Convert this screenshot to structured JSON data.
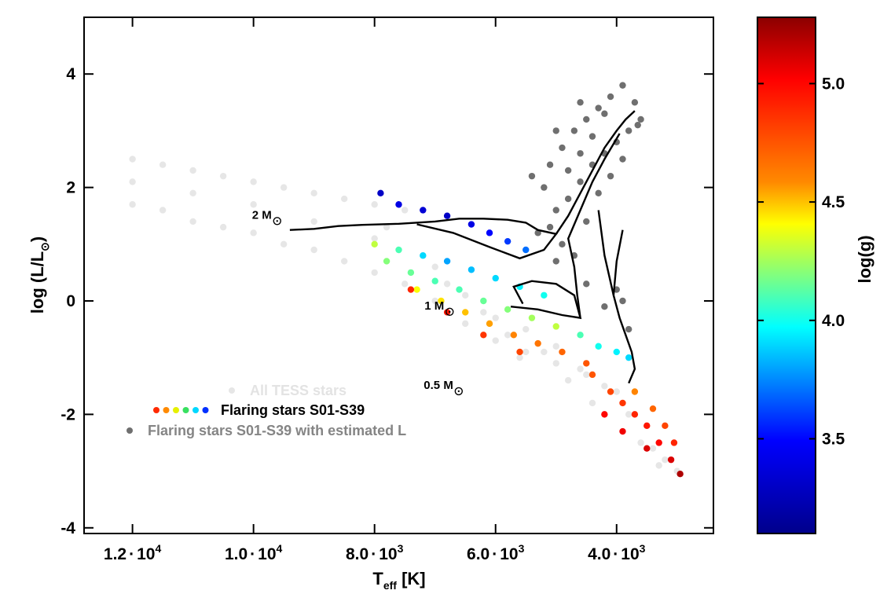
{
  "chart_data": {
    "type": "scatter",
    "xlabel": "T",
    "xlabel_sub": "eff",
    "xlabel_unit": " [K]",
    "ylabel": "log (L/L",
    "ylabel_sub": "⊙",
    "ylabel_end": ")",
    "x_axis_reversed": true,
    "xlim": [
      12800,
      2400
    ],
    "ylim": [
      -4.1,
      5.0
    ],
    "x_ticks": [
      {
        "value": 12000,
        "mant": "1.2",
        "exp": "4"
      },
      {
        "value": 10000,
        "mant": "1.0",
        "exp": "4"
      },
      {
        "value": 8000,
        "mant": "8.0",
        "exp": "3"
      },
      {
        "value": 6000,
        "mant": "6.0",
        "exp": "3"
      },
      {
        "value": 4000,
        "mant": "4.0",
        "exp": "3"
      }
    ],
    "y_ticks": [
      {
        "value": 4,
        "label": "4"
      },
      {
        "value": 2,
        "label": "2"
      },
      {
        "value": 0,
        "label": "0"
      },
      {
        "value": -2,
        "label": "-2"
      },
      {
        "value": -4,
        "label": "-4"
      }
    ],
    "series": [
      {
        "name": "All TESS stars",
        "color": "#e6e6e6",
        "points": [
          [
            12000,
            2.5
          ],
          [
            11500,
            2.4
          ],
          [
            11000,
            2.3
          ],
          [
            10500,
            2.2
          ],
          [
            10000,
            2.1
          ],
          [
            9500,
            2.0
          ],
          [
            9000,
            1.9
          ],
          [
            8500,
            1.8
          ],
          [
            8000,
            1.7
          ],
          [
            7500,
            1.6
          ],
          [
            12000,
            1.7
          ],
          [
            11500,
            1.6
          ],
          [
            11000,
            1.4
          ],
          [
            10500,
            1.3
          ],
          [
            10000,
            1.2
          ],
          [
            9500,
            1.0
          ],
          [
            9000,
            0.9
          ],
          [
            8500,
            0.7
          ],
          [
            8000,
            0.5
          ],
          [
            7500,
            0.3
          ],
          [
            12000,
            2.1
          ],
          [
            11000,
            1.9
          ],
          [
            10000,
            1.7
          ],
          [
            9000,
            1.4
          ],
          [
            8000,
            1.1
          ],
          [
            7000,
            0.6
          ],
          [
            6500,
            0.1
          ],
          [
            6000,
            -0.3
          ],
          [
            5500,
            -0.5
          ],
          [
            5000,
            -0.8
          ],
          [
            7000,
            0.0
          ],
          [
            6500,
            -0.4
          ],
          [
            6000,
            -0.7
          ],
          [
            5500,
            -0.9
          ],
          [
            5000,
            -1.1
          ],
          [
            4500,
            -1.3
          ],
          [
            4000,
            -1.6
          ],
          [
            3500,
            -2.2
          ],
          [
            3200,
            -2.8
          ],
          [
            3000,
            -3.0
          ],
          [
            3400,
            -2.6
          ],
          [
            3800,
            -2.0
          ],
          [
            4200,
            -1.5
          ],
          [
            4600,
            -1.2
          ],
          [
            5200,
            -0.9
          ],
          [
            5800,
            -0.6
          ],
          [
            6200,
            -0.2
          ],
          [
            6800,
            0.3
          ],
          [
            7200,
            0.8
          ],
          [
            7800,
            1.3
          ],
          [
            3300,
            -2.9
          ],
          [
            3600,
            -2.5
          ],
          [
            4400,
            -1.8
          ],
          [
            4800,
            -1.4
          ],
          [
            5600,
            -1.0
          ]
        ]
      },
      {
        "name": "Flaring stars S01-S39",
        "color_by": "log(g)",
        "points": [
          [
            7900,
            1.9,
            3.3
          ],
          [
            7600,
            1.7,
            3.4
          ],
          [
            7200,
            1.6,
            3.35
          ],
          [
            6800,
            1.5,
            3.3
          ],
          [
            6400,
            1.35,
            3.4
          ],
          [
            6100,
            1.2,
            3.5
          ],
          [
            5800,
            1.05,
            3.6
          ],
          [
            5500,
            0.9,
            3.7
          ],
          [
            8000,
            1.0,
            4.3
          ],
          [
            7600,
            0.9,
            4.1
          ],
          [
            7200,
            0.8,
            3.9
          ],
          [
            6800,
            0.7,
            3.8
          ],
          [
            6400,
            0.55,
            3.85
          ],
          [
            6000,
            0.4,
            3.9
          ],
          [
            5600,
            0.25,
            3.95
          ],
          [
            5200,
            0.1,
            4.0
          ],
          [
            7800,
            0.7,
            4.2
          ],
          [
            7400,
            0.5,
            4.15
          ],
          [
            7000,
            0.35,
            4.1
          ],
          [
            6600,
            0.2,
            4.1
          ],
          [
            6200,
            0.0,
            4.15
          ],
          [
            5800,
            -0.15,
            4.2
          ],
          [
            5400,
            -0.3,
            4.25
          ],
          [
            5000,
            -0.45,
            4.3
          ],
          [
            7300,
            0.2,
            4.4
          ],
          [
            6900,
            0.0,
            4.45
          ],
          [
            6500,
            -0.2,
            4.5
          ],
          [
            6100,
            -0.4,
            4.55
          ],
          [
            5700,
            -0.6,
            4.6
          ],
          [
            5300,
            -0.75,
            4.65
          ],
          [
            4900,
            -0.9,
            4.7
          ],
          [
            4500,
            -1.1,
            4.75
          ],
          [
            4600,
            -0.6,
            4.1
          ],
          [
            4300,
            -0.8,
            4.0
          ],
          [
            4000,
            -0.9,
            3.95
          ],
          [
            3800,
            -1.0,
            3.9
          ],
          [
            7400,
            0.2,
            4.9
          ],
          [
            6800,
            -0.2,
            4.95
          ],
          [
            6200,
            -0.6,
            4.85
          ],
          [
            5600,
            -0.9,
            4.8
          ],
          [
            4400,
            -1.3,
            4.75
          ],
          [
            4100,
            -1.6,
            4.8
          ],
          [
            3900,
            -1.8,
            4.85
          ],
          [
            3700,
            -2.0,
            4.9
          ],
          [
            3500,
            -2.2,
            4.95
          ],
          [
            3300,
            -2.5,
            5.0
          ],
          [
            3100,
            -2.8,
            5.1
          ],
          [
            2950,
            -3.05,
            5.2
          ],
          [
            3700,
            -1.6,
            4.6
          ],
          [
            3400,
            -1.9,
            4.7
          ],
          [
            3200,
            -2.2,
            4.8
          ],
          [
            3050,
            -2.5,
            4.9
          ],
          [
            4200,
            -2.0,
            5.0
          ],
          [
            3900,
            -2.3,
            5.05
          ],
          [
            3500,
            -2.6,
            5.1
          ]
        ]
      },
      {
        "name": "Flaring stars S01-S39 with estimated L",
        "color": "#6f6f6f",
        "points": [
          [
            5100,
            2.4
          ],
          [
            4900,
            2.7
          ],
          [
            4700,
            3.0
          ],
          [
            4500,
            3.2
          ],
          [
            4300,
            3.4
          ],
          [
            4100,
            3.6
          ],
          [
            3900,
            3.8
          ],
          [
            3700,
            3.5
          ],
          [
            3600,
            3.2
          ],
          [
            5000,
            1.6
          ],
          [
            4800,
            1.8
          ],
          [
            4600,
            2.1
          ],
          [
            4400,
            2.4
          ],
          [
            4200,
            2.6
          ],
          [
            4000,
            2.8
          ],
          [
            3800,
            3.0
          ],
          [
            3650,
            3.1
          ],
          [
            5300,
            1.2
          ],
          [
            5100,
            1.3
          ],
          [
            4900,
            1.0
          ],
          [
            4700,
            0.8
          ],
          [
            4500,
            1.4
          ],
          [
            4300,
            1.9
          ],
          [
            4100,
            2.2
          ],
          [
            3900,
            2.5
          ],
          [
            5200,
            2.0
          ],
          [
            5400,
            2.2
          ],
          [
            4800,
            2.3
          ],
          [
            4600,
            2.6
          ],
          [
            4400,
            2.9
          ],
          [
            4200,
            3.3
          ],
          [
            5000,
            3.0
          ],
          [
            4600,
            3.5
          ],
          [
            4000,
            0.2
          ],
          [
            3900,
            0.0
          ],
          [
            4200,
            -0.1
          ],
          [
            4500,
            0.3
          ],
          [
            3800,
            -0.5
          ],
          [
            5000,
            0.7
          ]
        ]
      }
    ],
    "tracks": [
      {
        "label": "2 M",
        "label_anchor": [
          9700,
          1.45
        ],
        "points": [
          [
            9400,
            1.25
          ],
          [
            9000,
            1.27
          ],
          [
            8600,
            1.32
          ],
          [
            8200,
            1.34
          ],
          [
            7600,
            1.36
          ],
          [
            7000,
            1.4
          ],
          [
            6600,
            1.45
          ],
          [
            6200,
            1.45
          ],
          [
            5800,
            1.43
          ],
          [
            5500,
            1.38
          ],
          [
            5300,
            1.25
          ],
          [
            5000,
            1.18
          ],
          [
            5200,
            0.9
          ],
          [
            5600,
            0.75
          ],
          [
            6100,
            0.95
          ],
          [
            6700,
            1.2
          ],
          [
            7300,
            1.35
          ]
        ],
        "branch": [
          [
            5000,
            1.18
          ],
          [
            4800,
            1.5
          ],
          [
            4600,
            1.9
          ],
          [
            4400,
            2.3
          ],
          [
            4200,
            2.7
          ],
          [
            4000,
            3.0
          ],
          [
            3850,
            3.2
          ],
          [
            3700,
            3.35
          ]
        ]
      },
      {
        "label": "1 M",
        "label_anchor": [
          6850,
          -0.15
        ],
        "points": [
          [
            5550,
            -0.05
          ],
          [
            5700,
            0.25
          ],
          [
            5400,
            0.35
          ],
          [
            5000,
            0.3
          ],
          [
            4700,
            0.1
          ],
          [
            4600,
            -0.3
          ],
          [
            4900,
            -0.25
          ],
          [
            5300,
            -0.15
          ],
          [
            5750,
            -0.1
          ]
        ],
        "branch": [
          [
            4600,
            -0.3
          ],
          [
            4650,
            0.1
          ],
          [
            4700,
            0.6
          ],
          [
            4800,
            1.1
          ],
          [
            4600,
            1.6
          ],
          [
            4400,
            2.1
          ],
          [
            4200,
            2.5
          ],
          [
            3950,
            2.95
          ]
        ]
      },
      {
        "label": "0.5 M",
        "label_anchor": [
          6700,
          -1.55
        ],
        "points": [
          [
            3800,
            -1.45
          ],
          [
            3700,
            -1.2
          ],
          [
            3750,
            -0.9
          ],
          [
            3850,
            -0.6
          ],
          [
            3950,
            -0.3
          ],
          [
            4050,
            0.1
          ],
          [
            4200,
            0.8
          ],
          [
            4300,
            1.6
          ]
        ],
        "branch": [
          [
            4050,
            0.1
          ],
          [
            4000,
            0.7
          ],
          [
            3900,
            1.25
          ]
        ]
      }
    ],
    "legend": [
      {
        "label": "All TESS stars",
        "color": "#e6e6e6",
        "text_color": "#e3e3e3"
      },
      {
        "label": "Flaring stars S01-S39",
        "colors": [
          "#ff2a00",
          "#ff8a00",
          "#e6f000",
          "#38e060",
          "#00d8ff",
          "#0030ff"
        ],
        "text_color": "#000000"
      },
      {
        "label": "Flaring stars S01-S39 with estimated L",
        "color": "#6f6f6f",
        "text_color": "#858585"
      }
    ],
    "legend_position": "bottom-left",
    "colorbar": {
      "label": "log(g)",
      "min": 3.1,
      "max": 5.28,
      "ticks": [
        {
          "value": 5.0,
          "label": "5.0"
        },
        {
          "value": 4.5,
          "label": "4.5"
        },
        {
          "value": 4.0,
          "label": "4.0"
        },
        {
          "value": 3.5,
          "label": "3.5"
        }
      ],
      "colors": [
        "#8b0000",
        "#ff0000",
        "#ff8a00",
        "#ffff00",
        "#00ffff",
        "#0000ff",
        "#00008b"
      ]
    }
  }
}
